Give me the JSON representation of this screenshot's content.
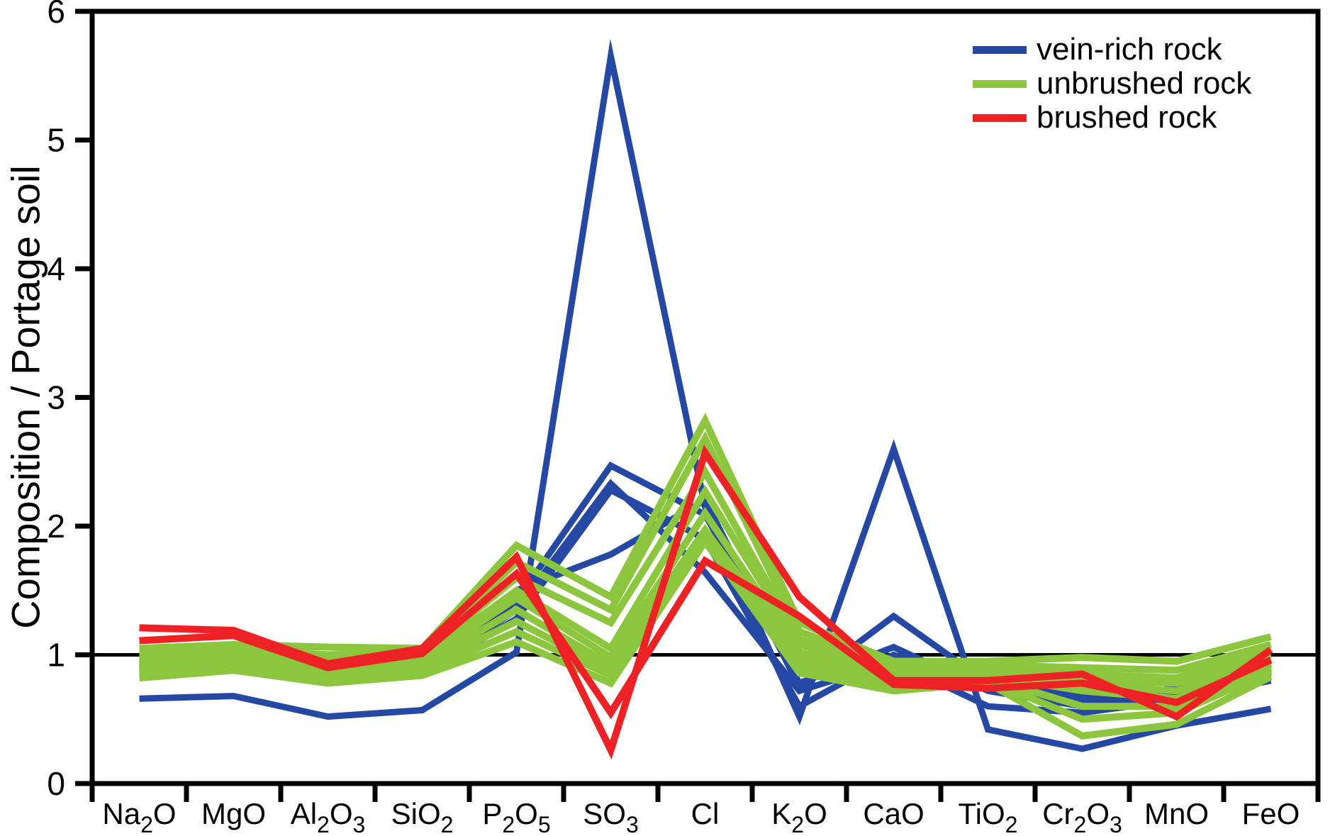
{
  "page": {
    "background": "#ffffff"
  },
  "chart_data": {
    "type": "line",
    "title": "",
    "xlabel": "",
    "ylabel": "Composition / Portage soil",
    "categories": [
      "Na2O",
      "MgO",
      "Al2O3",
      "SiO2",
      "P2O5",
      "SO3",
      "Cl",
      "K2O",
      "CaO",
      "TiO2",
      "Cr2O3",
      "MnO",
      "FeO"
    ],
    "ylim": [
      0,
      6
    ],
    "yticks": [
      0,
      1,
      2,
      3,
      4,
      5,
      6
    ],
    "reference_line_y": 1,
    "grid": false,
    "legend_position": "top-right",
    "axis_color": "#000000",
    "series_groups": [
      {
        "label": "vein-rich rock",
        "color": "#2648A5",
        "line_width": 9,
        "lines": [
          [
            0.66,
            0.68,
            0.52,
            0.57,
            1.02,
            5.65,
            2.15,
            0.52,
            2.6,
            0.42,
            0.27,
            0.45,
            0.58
          ],
          [
            0.92,
            0.95,
            0.85,
            0.88,
            1.42,
            2.47,
            2.09,
            0.78,
            1.06,
            0.72,
            0.6,
            0.7,
            0.88
          ],
          [
            0.9,
            0.93,
            0.82,
            0.86,
            1.35,
            2.33,
            1.64,
            0.72,
            0.95,
            0.6,
            0.55,
            0.65,
            0.8
          ],
          [
            0.88,
            0.91,
            0.8,
            0.85,
            1.28,
            2.28,
            1.9,
            0.6,
            1.0,
            0.75,
            0.65,
            0.74,
            0.85
          ],
          [
            0.94,
            0.96,
            0.86,
            0.9,
            1.5,
            1.78,
            2.2,
            0.75,
            1.3,
            0.78,
            0.68,
            0.72,
            0.9
          ]
        ]
      },
      {
        "label": "unbrushed rock",
        "color": "#8CC63F",
        "line_width": 10,
        "lines": [
          [
            1.05,
            1.08,
            1.06,
            1.05,
            1.85,
            1.45,
            2.82,
            1.25,
            0.95,
            0.95,
            0.98,
            0.95,
            1.14
          ],
          [
            1.0,
            1.04,
            1.0,
            1.02,
            1.72,
            1.35,
            2.68,
            1.18,
            0.92,
            0.92,
            0.9,
            0.88,
            1.08
          ],
          [
            0.98,
            1.0,
            0.95,
            1.0,
            1.6,
            1.25,
            2.42,
            1.12,
            0.88,
            0.9,
            0.85,
            0.82,
            1.05
          ],
          [
            0.95,
            0.98,
            0.92,
            0.97,
            1.5,
            1.05,
            2.27,
            1.08,
            0.85,
            0.88,
            0.8,
            0.78,
            1.0
          ],
          [
            0.93,
            0.96,
            0.9,
            0.95,
            1.44,
            0.98,
            2.1,
            1.02,
            0.82,
            0.86,
            0.76,
            0.72,
            0.97
          ],
          [
            0.9,
            0.94,
            0.88,
            0.92,
            1.35,
            0.92,
            1.97,
            0.98,
            0.8,
            0.84,
            0.72,
            0.66,
            0.93
          ],
          [
            0.88,
            0.92,
            0.85,
            0.9,
            1.26,
            0.88,
            1.92,
            0.95,
            0.78,
            0.82,
            0.6,
            0.6,
            0.9
          ],
          [
            0.85,
            0.9,
            0.82,
            0.87,
            1.18,
            0.84,
            1.9,
            0.9,
            0.75,
            0.8,
            0.5,
            0.55,
            0.87
          ],
          [
            0.82,
            0.88,
            0.78,
            0.84,
            1.1,
            0.78,
            1.88,
            0.86,
            0.72,
            0.78,
            0.37,
            0.46,
            0.83
          ]
        ]
      },
      {
        "label": "brushed rock",
        "color": "#EE2224",
        "line_width": 10,
        "lines": [
          [
            1.21,
            1.19,
            0.93,
            1.05,
            1.76,
            0.26,
            2.57,
            1.45,
            0.8,
            0.8,
            0.85,
            0.52,
            1.04
          ],
          [
            1.11,
            1.15,
            0.9,
            1.01,
            1.63,
            0.55,
            1.73,
            1.3,
            0.77,
            0.74,
            0.78,
            0.63,
            0.96
          ]
        ]
      }
    ]
  }
}
